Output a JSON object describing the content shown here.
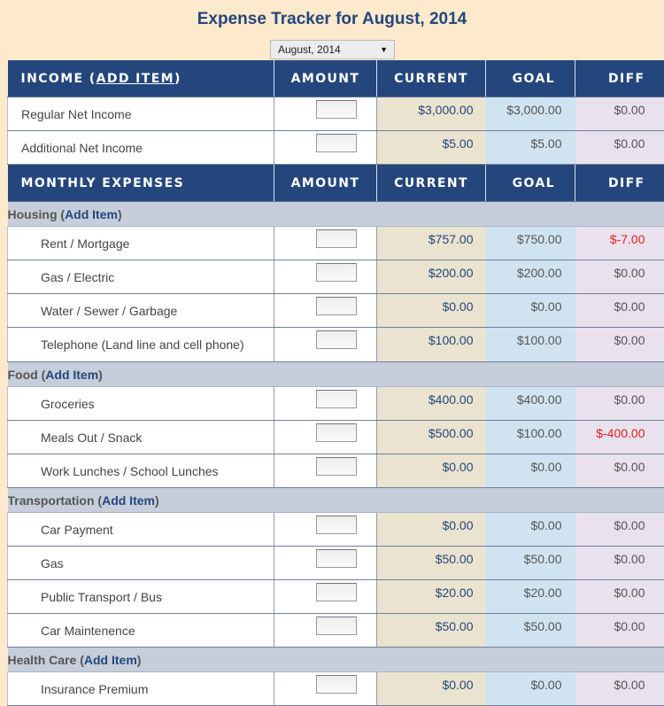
{
  "page": {
    "title": "Expense Tracker for August, 2014",
    "month_select": "August, 2014"
  },
  "income": {
    "header": {
      "label": "Income",
      "add": "Add Item",
      "amount": "Amount",
      "current": "Current",
      "goal": "Goal",
      "diff": "Diff"
    },
    "rows": [
      {
        "label": "Regular Net Income",
        "current": "$3,000.00",
        "goal": "$3,000.00",
        "diff": "$0.00"
      },
      {
        "label": "Additional Net Income",
        "current": "$5.00",
        "goal": "$5.00",
        "diff": "$0.00"
      }
    ]
  },
  "expenses": {
    "header": {
      "label": "Monthly Expenses",
      "amount": "Amount",
      "current": "Current",
      "goal": "Goal",
      "diff": "Diff"
    },
    "categories": [
      {
        "name": "Housing",
        "add": "Add Item",
        "rows": [
          {
            "label": "Rent / Mortgage",
            "current": "$757.00",
            "goal": "$750.00",
            "diff": "$-7.00",
            "negative": true
          },
          {
            "label": "Gas / Electric",
            "current": "$200.00",
            "goal": "$200.00",
            "diff": "$0.00"
          },
          {
            "label": "Water / Sewer / Garbage",
            "current": "$0.00",
            "goal": "$0.00",
            "diff": "$0.00"
          },
          {
            "label": "Telephone (Land line and cell phone)",
            "current": "$100.00",
            "goal": "$100.00",
            "diff": "$0.00"
          }
        ]
      },
      {
        "name": "Food",
        "add": "Add Item",
        "rows": [
          {
            "label": "Groceries",
            "current": "$400.00",
            "goal": "$400.00",
            "diff": "$0.00"
          },
          {
            "label": "Meals Out / Snack",
            "current": "$500.00",
            "goal": "$100.00",
            "diff": "$-400.00",
            "negative": true
          },
          {
            "label": "Work Lunches / School Lunches",
            "current": "$0.00",
            "goal": "$0.00",
            "diff": "$0.00"
          }
        ]
      },
      {
        "name": "Transportation",
        "add": "Add Item",
        "rows": [
          {
            "label": "Car Payment",
            "current": "$0.00",
            "goal": "$0.00",
            "diff": "$0.00"
          },
          {
            "label": "Gas",
            "current": "$50.00",
            "goal": "$50.00",
            "diff": "$0.00"
          },
          {
            "label": "Public Transport / Bus",
            "current": "$20.00",
            "goal": "$20.00",
            "diff": "$0.00"
          },
          {
            "label": "Car Maintenence",
            "current": "$50.00",
            "goal": "$50.00",
            "diff": "$0.00"
          }
        ]
      },
      {
        "name": "Health Care",
        "add": "Add Item",
        "rows": [
          {
            "label": "Insurance Premium",
            "current": "$0.00",
            "goal": "$0.00",
            "diff": "$0.00"
          }
        ]
      }
    ]
  },
  "colors": {
    "header_bg": "#24467d",
    "page_bg": "#fde9cc",
    "negative": "#e02020"
  }
}
